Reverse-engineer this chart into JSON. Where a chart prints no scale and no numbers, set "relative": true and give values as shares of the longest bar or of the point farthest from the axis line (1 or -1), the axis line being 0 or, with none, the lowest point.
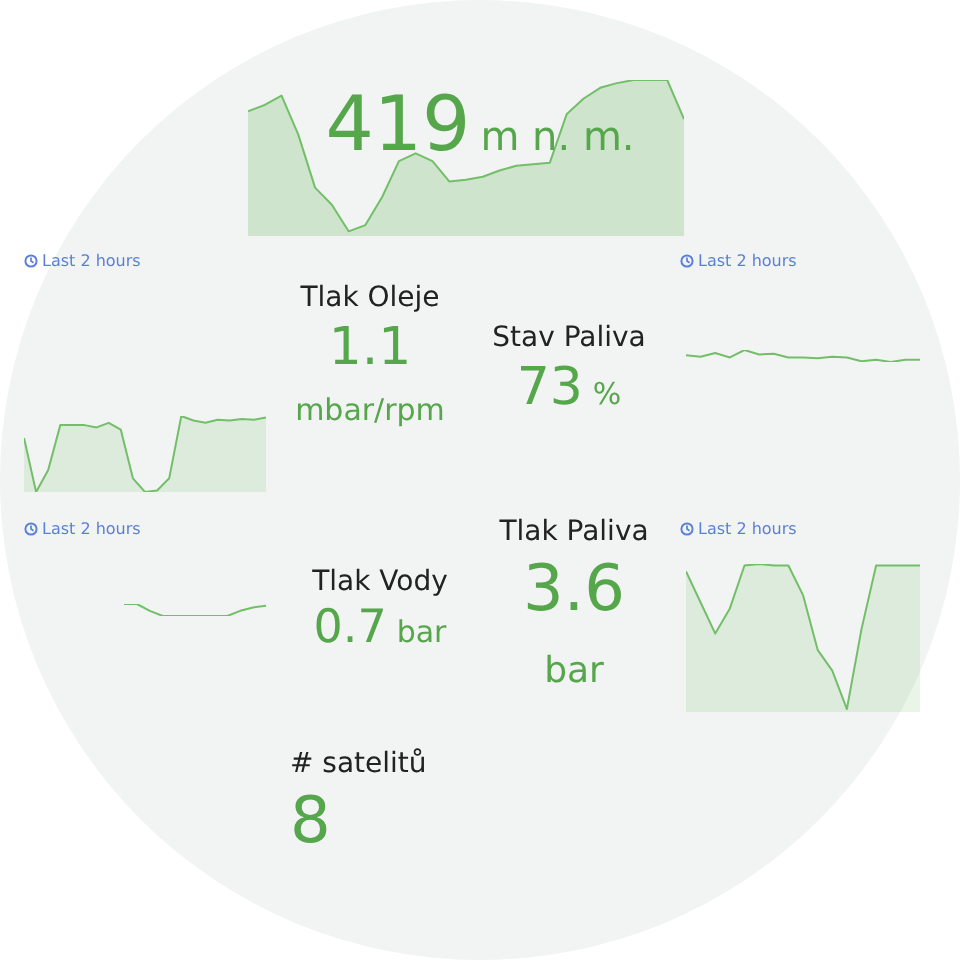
{
  "chart_data": [
    {
      "type": "other",
      "data_labels": true,
      "values": [
        419
      ],
      "annotations": [
        "m n. m."
      ],
      "color": "#56a64b"
    },
    {
      "type": "area",
      "relative": true,
      "color": "#73bf69",
      "categories": [
        null,
        null,
        null,
        null,
        null,
        null,
        null,
        null,
        null,
        null,
        null,
        null,
        null,
        null,
        null,
        null,
        null,
        null,
        null,
        null,
        null,
        null,
        null,
        null,
        null,
        null,
        null
      ],
      "values": [
        0.8,
        0.84,
        0.9,
        0.65,
        0.31,
        0.2,
        0.03,
        0.07,
        0.25,
        0.48,
        0.53,
        0.48,
        0.35,
        0.36,
        0.38,
        0.42,
        0.45,
        0.46,
        0.47,
        0.78,
        0.88,
        0.95,
        0.98,
        1.0,
        1.0,
        1.0,
        0.75
      ]
    },
    {
      "type": "area",
      "relative": true,
      "color": "#73bf69",
      "annotations": [
        "Last 2 hours"
      ],
      "categories": [
        null,
        null,
        null,
        null,
        null,
        null,
        null,
        null,
        null,
        null,
        null,
        null,
        null,
        null,
        null,
        null,
        null,
        null,
        null,
        null,
        null
      ],
      "values": [
        0.71,
        0,
        0.29,
        0.88,
        0.88,
        0.88,
        0.85,
        0.91,
        0.82,
        0.18,
        0,
        0.02,
        0.18,
        1.0,
        0.94,
        0.91,
        0.95,
        0.94,
        0.96,
        0.95,
        0.98
      ]
    },
    {
      "type": "other",
      "data_labels": true,
      "title": "Tlak Oleje",
      "values": [
        1.1
      ],
      "annotations": [
        "mbar/rpm"
      ],
      "color": "#56a64b"
    },
    {
      "type": "other",
      "data_labels": true,
      "title": "Stav Paliva",
      "values": [
        73
      ],
      "annotations": [
        "%"
      ],
      "color": "#56a64b"
    },
    {
      "type": "line",
      "relative": true,
      "color": "#73bf69",
      "annotations": [
        "Last 2 hours"
      ],
      "categories": [
        null,
        null,
        null,
        null,
        null,
        null,
        null,
        null,
        null,
        null,
        null,
        null,
        null,
        null,
        null,
        null,
        null
      ],
      "values": [
        0.56,
        0.44,
        0.75,
        0.38,
        1,
        0.63,
        0.69,
        0.38,
        0.38,
        0.31,
        0.44,
        0.38,
        0.06,
        0.19,
        0,
        0.19,
        0.19
      ]
    },
    {
      "type": "line",
      "relative": true,
      "color": "#73bf69",
      "annotations": [
        "Last 2 hours"
      ],
      "categories": [
        null,
        null,
        null,
        null,
        null,
        null,
        null,
        null,
        null,
        null,
        null,
        null
      ],
      "values": [
        1,
        1,
        0.43,
        0,
        0,
        0,
        0,
        0,
        0,
        0.43,
        0.71,
        0.86
      ]
    },
    {
      "type": "other",
      "data_labels": true,
      "title": "Tlak Vody",
      "values": [
        0.7
      ],
      "annotations": [
        "bar"
      ],
      "color": "#56a64b"
    },
    {
      "type": "other",
      "data_labels": true,
      "title": "Tlak Paliva",
      "values": [
        3.6
      ],
      "annotations": [
        "bar"
      ],
      "color": "#56a64b"
    },
    {
      "type": "area",
      "relative": true,
      "color": "#73bf69",
      "annotations": [
        "Last 2 hours"
      ],
      "categories": [
        null,
        null,
        null,
        null,
        null,
        null,
        null,
        null,
        null,
        null,
        null,
        null,
        null,
        null,
        null,
        null,
        null
      ],
      "values": [
        0.95,
        0.74,
        0.53,
        0.7,
        0.99,
        1.0,
        0.99,
        0.99,
        0.79,
        0.42,
        0.28,
        0.02,
        0.56,
        0.99,
        0.99,
        0.99,
        0.99
      ]
    },
    {
      "type": "other",
      "data_labels": true,
      "title": "# satelitů",
      "values": [
        8
      ],
      "color": "#56a64b"
    }
  ]
}
